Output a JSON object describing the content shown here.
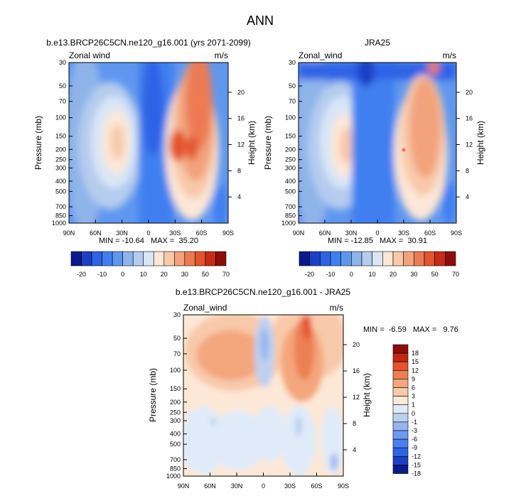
{
  "page": {
    "title": "ANN"
  },
  "colors": {
    "wind": [
      "#0a1a8c",
      "#1d3fc4",
      "#2f63e6",
      "#3f7ff0",
      "#5f97ef",
      "#8eb4ea",
      "#b5ccee",
      "#d9e6f7",
      "#fde7d6",
      "#f8c9aa",
      "#f2a37c",
      "#ec7a52",
      "#e3542f",
      "#c82a17",
      "#8c0e0a"
    ],
    "diff": [
      "#0a1a8c",
      "#1d3fc4",
      "#2f63e6",
      "#4a7ff0",
      "#6f9aef",
      "#97b5ee",
      "#bcd0f1",
      "#e0ebf9",
      "#fde7d6",
      "#f8c9aa",
      "#f4a67d",
      "#ee7f52",
      "#e4532d",
      "#c4260f",
      "#8c0e0a"
    ]
  },
  "chart_data": [
    {
      "id": "panel1",
      "type": "contour",
      "title": "b.e13.BRCP26C5CN.ne120_g16.001 (yrs 2071-2099)",
      "field_label": "Zonal wind",
      "units": "m/s",
      "ylabel": "Pressure (mb)",
      "ylabel_right": "Height (km)",
      "x_ticks": [
        "90N",
        "60N",
        "30N",
        "0",
        "30S",
        "60S",
        "90S"
      ],
      "y_ticks": [
        "30",
        "50",
        "70",
        "100",
        "150",
        "200",
        "250",
        "300",
        "400",
        "500",
        "700",
        "850",
        "1000"
      ],
      "y_ticks_right": [
        "20",
        "16",
        "12",
        "8",
        "4"
      ],
      "ylim": [
        1000,
        30
      ],
      "min_max": "MIN = -10.64   MAX =  35.20",
      "features": [
        {
          "lat": -45,
          "p": 200,
          "value": 35.2
        },
        {
          "lat": 30,
          "p": 200,
          "value": 22
        },
        {
          "lat": 0,
          "p": 100,
          "value": -10.64
        }
      ]
    },
    {
      "id": "panel2",
      "type": "contour",
      "title": "JRA25",
      "field_label": "Zonal_wind",
      "units": "m/s",
      "ylabel": "Pressure (mb)",
      "ylabel_right": "Height (km)",
      "x_ticks": [
        "90N",
        "60N",
        "30N",
        "0",
        "30S",
        "60S",
        "90S"
      ],
      "y_ticks": [
        "30",
        "50",
        "70",
        "100",
        "150",
        "200",
        "250",
        "300",
        "400",
        "500",
        "700",
        "850",
        "1000"
      ],
      "y_ticks_right": [
        "20",
        "16",
        "12",
        "8",
        "4"
      ],
      "ylim": [
        1000,
        30
      ],
      "min_max": "MIN = -12.85   MAX =  30.91",
      "features": [
        {
          "lat": -45,
          "p": 200,
          "value": 30.91
        },
        {
          "lat": 30,
          "p": 200,
          "value": 20
        },
        {
          "lat": 0,
          "p": 50,
          "value": -12.85
        }
      ]
    },
    {
      "id": "panel3",
      "type": "contour",
      "title": "b.e13.BRCP26C5CN.ne120_g16.001 - JRA25",
      "field_label": "Zonal_wind",
      "units": "m/s",
      "ylabel": "Pressure (mb)",
      "ylabel_right": "Height (km)",
      "x_ticks": [
        "90N",
        "60N",
        "30N",
        "0",
        "30S",
        "60S",
        "90S"
      ],
      "y_ticks": [
        "30",
        "50",
        "70",
        "100",
        "150",
        "200",
        "250",
        "300",
        "400",
        "500",
        "700",
        "850",
        "1000"
      ],
      "y_ticks_right": [
        "20",
        "16",
        "12",
        "8",
        "4"
      ],
      "ylim": [
        1000,
        30
      ],
      "min_max": "MIN =  -6.59   MAX =   9.76",
      "features": [
        {
          "lat": -45,
          "p": 50,
          "value": 9.76
        },
        {
          "lat": 0,
          "p": 70,
          "value": -6.59
        }
      ]
    }
  ],
  "colorbar_wind": {
    "labels": [
      "-20",
      "-10",
      "0",
      "10",
      "20",
      "30",
      "50",
      "70"
    ]
  },
  "colorbar_diff": {
    "labels": [
      "18",
      "15",
      "12",
      "9",
      "6",
      "3",
      "1",
      "0",
      "-1",
      "-3",
      "-6",
      "-9",
      "-12",
      "-15",
      "-18"
    ]
  }
}
